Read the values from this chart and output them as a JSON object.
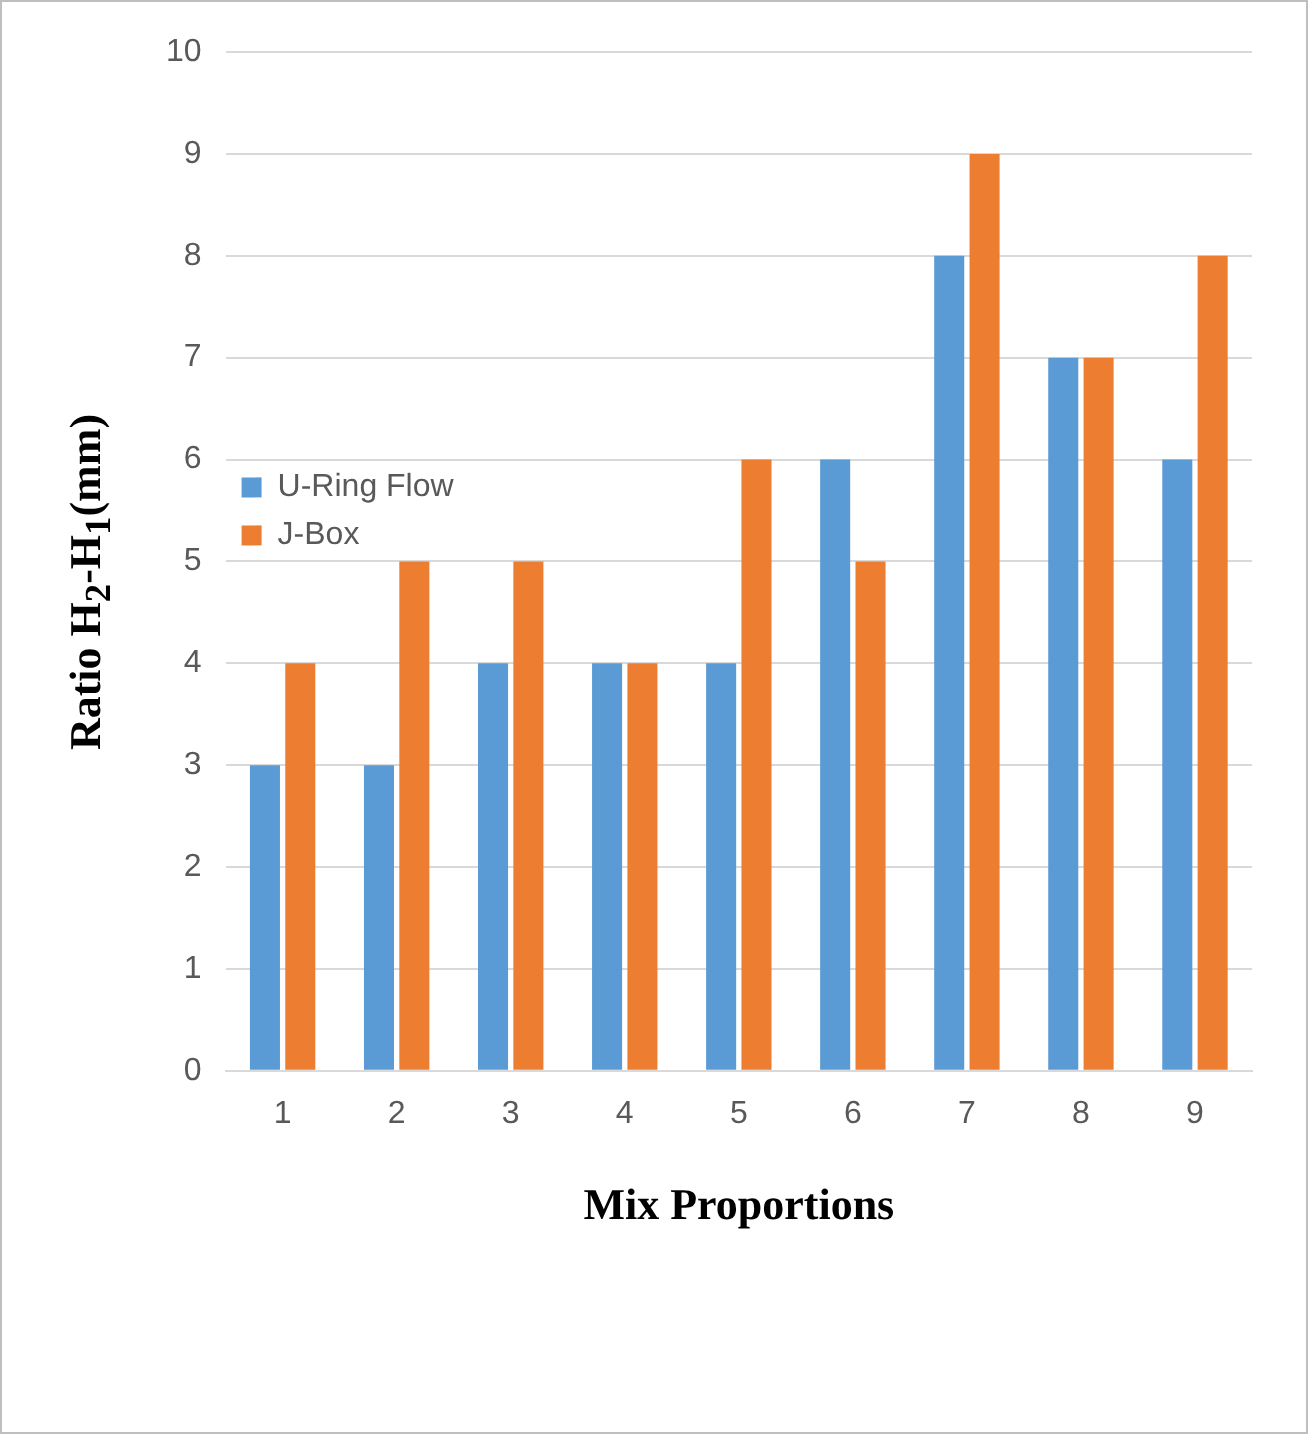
{
  "chart_data": {
    "type": "bar",
    "xlabel": "Mix Proportions",
    "ylabel": "Ratio H$_{2}$-H$_{1}$(mm)",
    "categories": [
      "1",
      "2",
      "3",
      "4",
      "5",
      "6",
      "7",
      "8",
      "9"
    ],
    "series": [
      {
        "name": "U-Ring Flow",
        "color": "#5b9bd5",
        "values": [
          3,
          3,
          4,
          4,
          4,
          6,
          8,
          7,
          6
        ]
      },
      {
        "name": "J-Box",
        "color": "#ed7d31",
        "values": [
          4,
          5,
          5,
          4,
          6,
          5,
          9,
          7,
          8
        ]
      }
    ],
    "ylim": [
      0,
      10
    ],
    "yticks": [
      0,
      1,
      2,
      3,
      4,
      5,
      6,
      7,
      8,
      9,
      10
    ],
    "grid": "y",
    "legend": "top"
  }
}
